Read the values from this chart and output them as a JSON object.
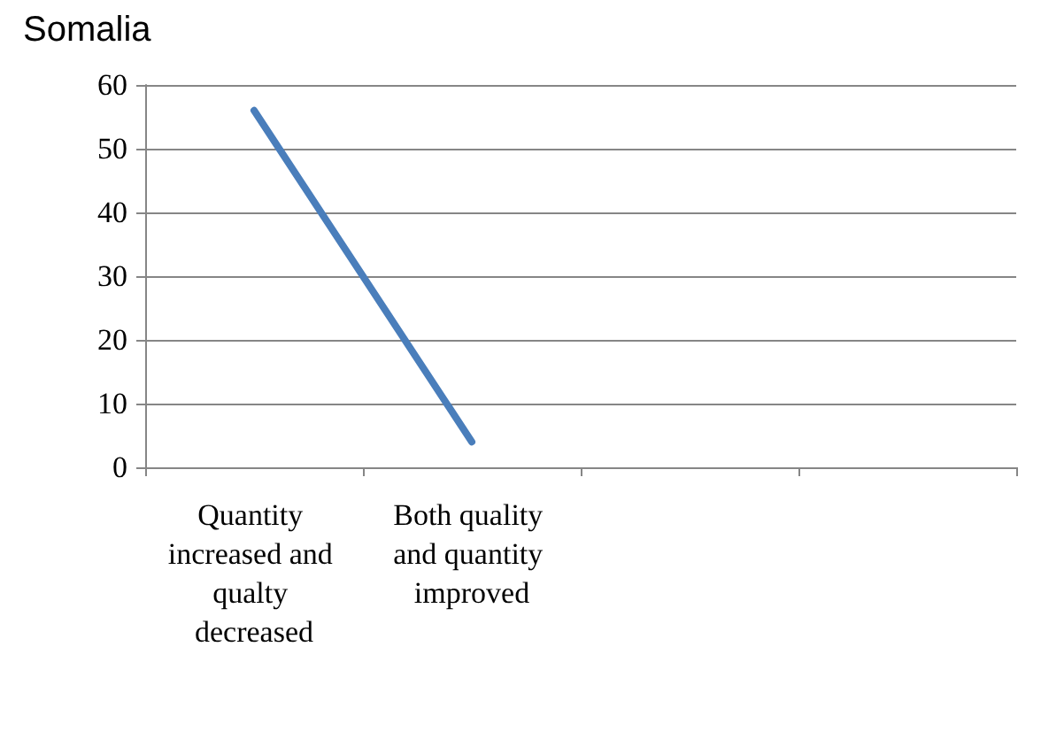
{
  "chart_data": {
    "type": "line",
    "title": "Somalia",
    "categories": [
      "Quantity increased and qualty decreased",
      "Both quality and quantity improved",
      null,
      null
    ],
    "series": [
      {
        "color": "#4a7ebb",
        "values": [
          56,
          4,
          null,
          null
        ]
      }
    ],
    "ylim": [
      0,
      60
    ],
    "yticks": [
      0,
      10,
      20,
      30,
      40,
      50,
      60
    ],
    "grid": "y",
    "marker": "none",
    "line_style": "solid"
  }
}
